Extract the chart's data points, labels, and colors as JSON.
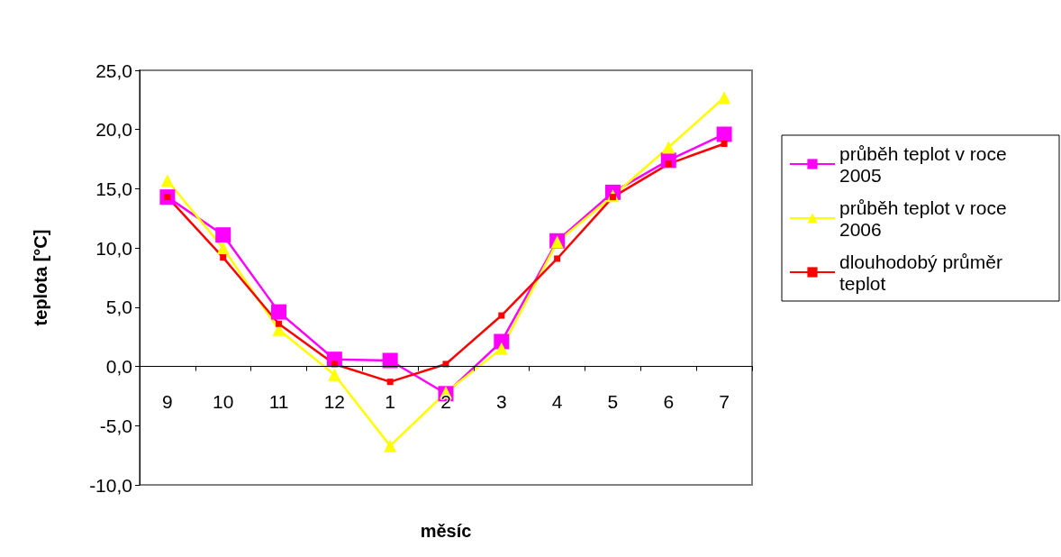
{
  "chart_data": {
    "type": "line",
    "xlabel": "měsíc",
    "ylabel": "teplota [°C]",
    "categories": [
      "9",
      "10",
      "11",
      "12",
      "1",
      "2",
      "3",
      "4",
      "5",
      "6",
      "7"
    ],
    "series": [
      {
        "name": "průběh teplot v roce 2005",
        "color": "#ff00ff",
        "marker": "square",
        "values": [
          14.3,
          11.1,
          4.6,
          0.6,
          0.5,
          -2.3,
          2.1,
          10.6,
          14.7,
          17.4,
          19.6
        ]
      },
      {
        "name": "průběh teplot v roce 2006",
        "color": "#ffff00",
        "marker": "triangle",
        "values": [
          15.7,
          10.0,
          3.1,
          -0.7,
          -6.7,
          -2.2,
          1.5,
          10.5,
          14.4,
          18.5,
          22.7
        ]
      },
      {
        "name": "dlouhodobý průměr teplot",
        "color": "#ff0000",
        "marker": "square",
        "values": [
          14.3,
          9.2,
          3.6,
          0.2,
          -1.3,
          0.2,
          4.3,
          9.1,
          14.3,
          17.1,
          18.8
        ]
      }
    ],
    "ylim": [
      -10,
      25
    ],
    "yticks": [
      {
        "value": -10,
        "label": "-10,0"
      },
      {
        "value": -5,
        "label": "-5,0"
      },
      {
        "value": 0,
        "label": "0,0"
      },
      {
        "value": 5,
        "label": "5,0"
      },
      {
        "value": 10,
        "label": "10,0"
      },
      {
        "value": 15,
        "label": "15,0"
      },
      {
        "value": 20,
        "label": "20,0"
      },
      {
        "value": 25,
        "label": "25,0"
      }
    ],
    "grid": false,
    "legend": "right"
  }
}
